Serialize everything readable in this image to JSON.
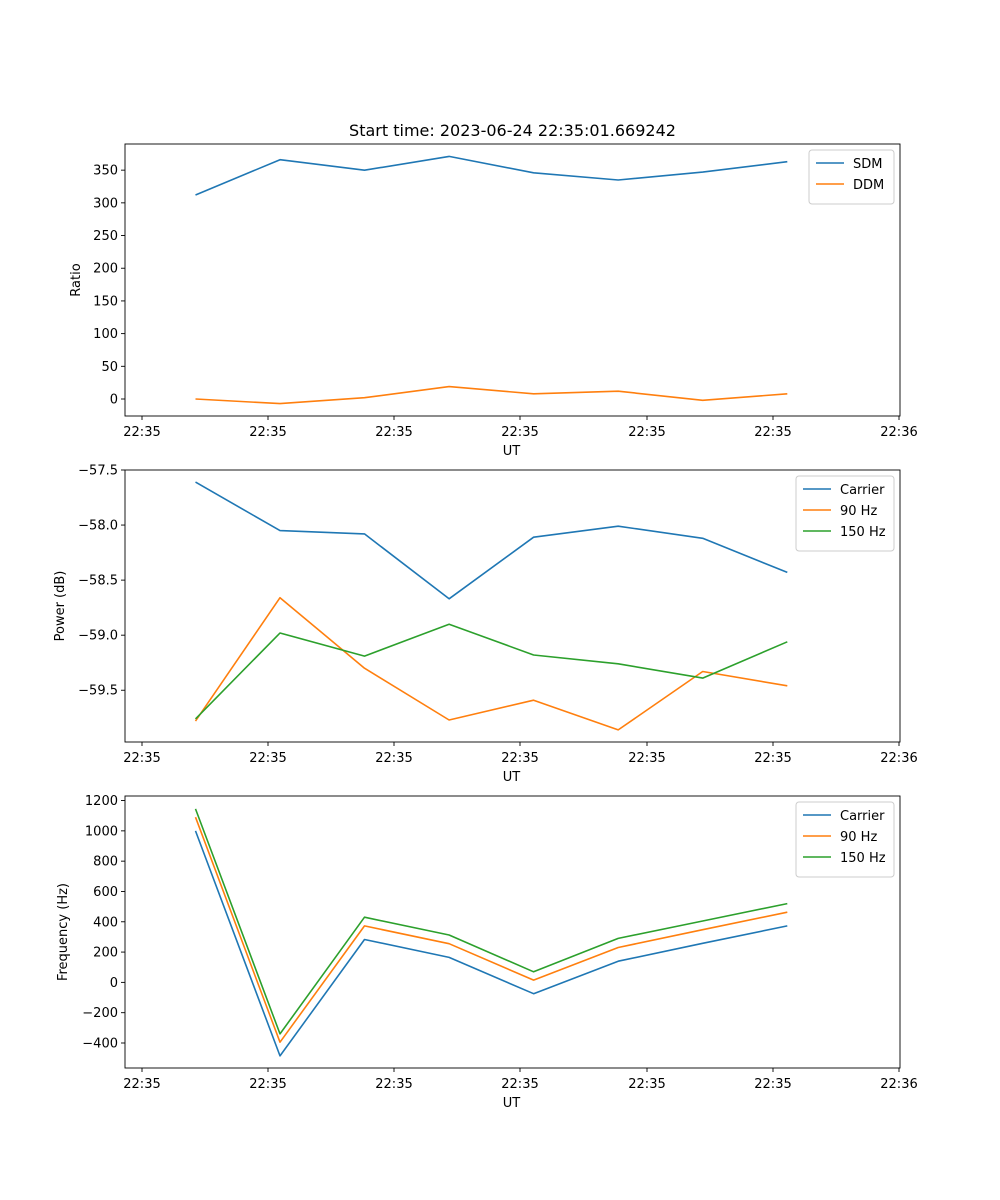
{
  "figure": {
    "title": "Start time: 2023-06-24 22:35:01.669242"
  },
  "chart_data": [
    {
      "type": "line",
      "title": "Start time: 2023-06-24 22:35:01.669242",
      "xlabel": "UT",
      "ylabel": "Ratio",
      "x_tick_labels": [
        "22:35",
        "22:35",
        "22:35",
        "22:35",
        "22:35",
        "22:35",
        "22:35"
      ],
      "x_tick_labels_extra": "22:36",
      "xlim": [
        0,
        11
      ],
      "ylim": [
        -26,
        390
      ],
      "y_ticks": [
        0,
        50,
        100,
        150,
        200,
        250,
        300,
        350
      ],
      "grid": false,
      "legend": "top-right",
      "x": [
        1,
        2.2,
        3.4,
        4.6,
        5.8,
        7.0,
        8.2,
        9.4
      ],
      "series": [
        {
          "name": "SDM",
          "color": "#1f77b4",
          "values": [
            312,
            366,
            350,
            371,
            346,
            335,
            347,
            363
          ]
        },
        {
          "name": "DDM",
          "color": "#ff7f0e",
          "values": [
            0,
            -7,
            2,
            19,
            8,
            12,
            -2,
            8
          ]
        }
      ]
    },
    {
      "type": "line",
      "xlabel": "UT",
      "ylabel": "Power (dB)",
      "x_tick_labels": [
        "22:35",
        "22:35",
        "22:35",
        "22:35",
        "22:35",
        "22:35",
        "22:35"
      ],
      "x_tick_labels_extra": "22:36",
      "xlim": [
        0,
        11
      ],
      "ylim": [
        -59.97,
        -57.5
      ],
      "y_ticks": [
        -59.5,
        -59.0,
        -58.5,
        -58.0,
        -57.5
      ],
      "y_tick_labels": [
        "−59.5",
        "−59.0",
        "−58.5",
        "−58.0",
        "−57.5"
      ],
      "grid": false,
      "legend": "top-right",
      "x": [
        1,
        2.2,
        3.4,
        4.6,
        5.8,
        7.0,
        8.2,
        9.4
      ],
      "series": [
        {
          "name": "Carrier",
          "color": "#1f77b4",
          "values": [
            -57.61,
            -58.05,
            -58.08,
            -58.67,
            -58.11,
            -58.01,
            -58.12,
            -58.43
          ]
        },
        {
          "name": "90 Hz",
          "color": "#ff7f0e",
          "values": [
            -59.78,
            -58.66,
            -59.3,
            -59.77,
            -59.59,
            -59.86,
            -59.33,
            -59.46
          ]
        },
        {
          "name": "150 Hz",
          "color": "#2ca02c",
          "values": [
            -59.76,
            -58.98,
            -59.19,
            -58.9,
            -59.18,
            -59.26,
            -59.39,
            -59.06
          ]
        }
      ]
    },
    {
      "type": "line",
      "xlabel": "UT",
      "ylabel": "Frequency (Hz)",
      "x_tick_labels": [
        "22:35",
        "22:35",
        "22:35",
        "22:35",
        "22:35",
        "22:35",
        "22:35"
      ],
      "x_tick_labels_extra": "22:36",
      "xlim": [
        0,
        11
      ],
      "ylim": [
        -565,
        1230
      ],
      "y_ticks": [
        -400,
        -200,
        0,
        200,
        400,
        600,
        800,
        1000,
        1200
      ],
      "y_tick_labels": [
        "−400",
        "−200",
        "0",
        "200",
        "400",
        "600",
        "800",
        "1000",
        "1200"
      ],
      "grid": false,
      "legend": "top-right",
      "x": [
        1,
        2.2,
        3.4,
        4.6,
        5.8,
        7.0,
        8.2,
        9.4
      ],
      "series": [
        {
          "name": "Carrier",
          "color": "#1f77b4",
          "values": [
            1000,
            -485,
            283,
            165,
            -75,
            140,
            258,
            373
          ]
        },
        {
          "name": "90 Hz",
          "color": "#ff7f0e",
          "values": [
            1090,
            -395,
            373,
            255,
            15,
            230,
            348,
            463
          ]
        },
        {
          "name": "150 Hz",
          "color": "#2ca02c",
          "values": [
            1145,
            -340,
            430,
            313,
            70,
            290,
            405,
            520
          ]
        }
      ]
    }
  ]
}
